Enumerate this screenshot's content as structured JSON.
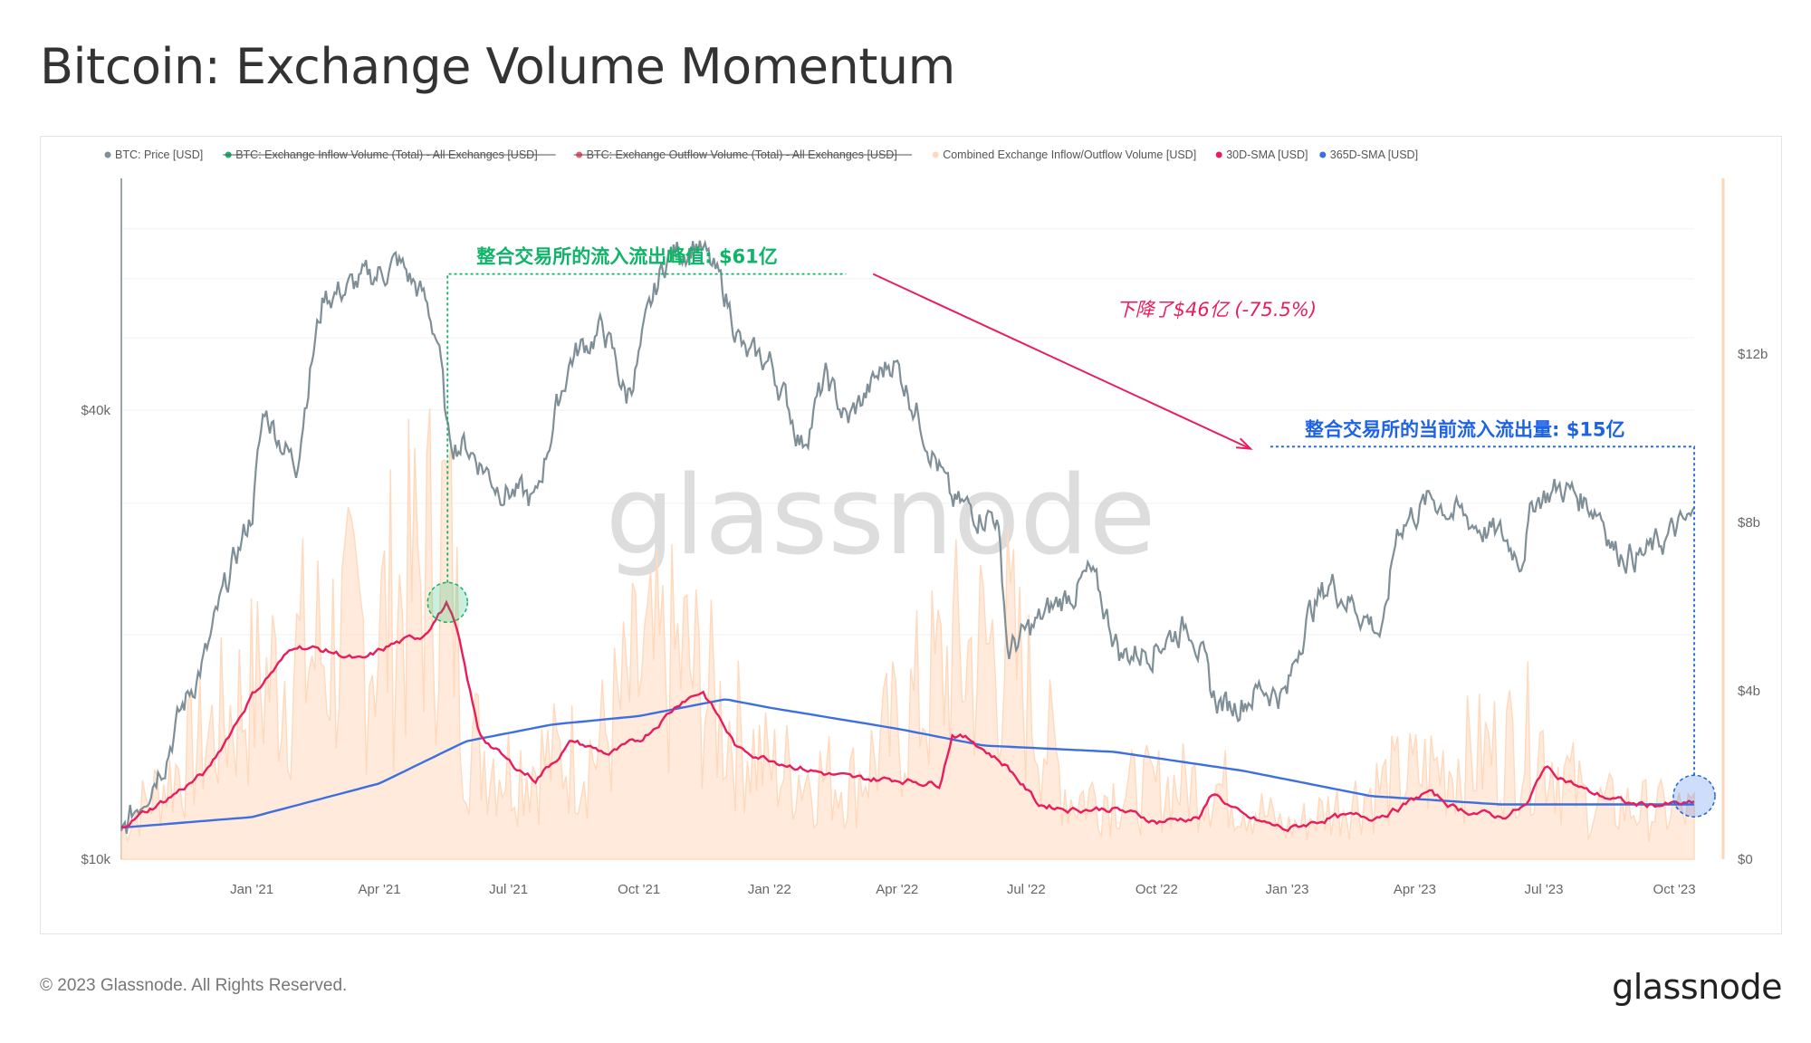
{
  "page": {
    "title": "Bitcoin: Exchange Volume Momentum",
    "copyright": "© 2023 Glassnode. All Rights Reserved.",
    "logo": "glassnode",
    "watermark": "glassnode"
  },
  "colors": {
    "price": "#7f8f98",
    "inflow": "#1db36e",
    "outflow": "#ef5a72",
    "combined": "#ffd9bd",
    "sma30": "#ea1d5c",
    "sma365": "#3c6fe0",
    "peak": "#10b468",
    "drop": "#ea1d5c",
    "current": "#1e63e6"
  },
  "chart_data": {
    "type": "line",
    "title": "Bitcoin: Exchange Volume Momentum",
    "legend": [
      {
        "label": "BTC: Price [USD]",
        "color": "#7f8f98",
        "struck": false
      },
      {
        "label": "BTC: Exchange Inflow Volume (Total) - All Exchanges [USD]",
        "color": "#1db36e",
        "struck": true
      },
      {
        "label": "BTC: Exchange Outflow Volume (Total) - All Exchanges [USD]",
        "color": "#ef5a72",
        "struck": true
      },
      {
        "label": "Combined Exchange Inflow/Outflow Volume [USD]",
        "color": "#ffd9bd",
        "struck": false
      },
      {
        "label": "30D-SMA [USD]",
        "color": "#ea1d5c",
        "struck": false
      },
      {
        "label": "365D-SMA [USD]",
        "color": "#3c6fe0",
        "struck": false
      }
    ],
    "legend_placement": "top",
    "x_ticks": [
      "Jan '21",
      "Apr '21",
      "Jul '21",
      "Oct '21",
      "Jan '22",
      "Apr '22",
      "Jul '22",
      "Oct '22",
      "Jan '23",
      "Apr '23",
      "Jul '23",
      "Oct '23"
    ],
    "x_range": [
      "2020-10-01",
      "2023-10-15"
    ],
    "y_left": {
      "ticks": [
        "$10k",
        "$40k"
      ],
      "tick_values": [
        10000,
        40000
      ],
      "scale": "log",
      "range": [
        10000,
        80000
      ]
    },
    "y_right": {
      "ticks": [
        "$0",
        "$4b",
        "$8b",
        "$12b"
      ],
      "tick_values": [
        0,
        4,
        8,
        12
      ],
      "unit": "billion USD",
      "range": [
        0,
        16
      ]
    },
    "series": [
      {
        "name": "BTC: Price [USD]",
        "axis": "left",
        "x": [
          "2020-10-01",
          "2020-11-01",
          "2020-12-01",
          "2021-01-01",
          "2021-01-10",
          "2021-02-01",
          "2021-02-21",
          "2021-03-13",
          "2021-04-14",
          "2021-05-01",
          "2021-05-12",
          "2021-05-19",
          "2021-06-01",
          "2021-06-22",
          "2021-07-20",
          "2021-08-14",
          "2021-09-06",
          "2021-09-22",
          "2021-10-01",
          "2021-10-20",
          "2021-11-10",
          "2021-12-01",
          "2021-12-15",
          "2022-01-01",
          "2022-01-24",
          "2022-02-10",
          "2022-02-25",
          "2022-03-29",
          "2022-04-15",
          "2022-05-09",
          "2022-05-20",
          "2022-06-10",
          "2022-06-18",
          "2022-07-01",
          "2022-08-15",
          "2022-09-06",
          "2022-09-20",
          "2022-10-01",
          "2022-10-26",
          "2022-11-09",
          "2022-11-21",
          "2022-12-15",
          "2023-01-01",
          "2023-01-14",
          "2023-02-01",
          "2023-03-10",
          "2023-03-20",
          "2023-04-14",
          "2023-05-01",
          "2023-06-01",
          "2023-06-15",
          "2023-06-25",
          "2023-07-14",
          "2023-08-10",
          "2023-08-20",
          "2023-09-10",
          "2023-10-01",
          "2023-10-15"
        ],
        "y": [
          10700,
          13800,
          19000,
          29000,
          40000,
          33500,
          57000,
          58500,
          63000,
          57000,
          50000,
          36500,
          36000,
          32000,
          30000,
          47000,
          51500,
          41500,
          47000,
          64000,
          67500,
          57000,
          47000,
          46500,
          36000,
          44000,
          38500,
          47000,
          40000,
          30000,
          29500,
          29000,
          19000,
          20000,
          24000,
          18800,
          19000,
          19500,
          20800,
          16500,
          16000,
          17000,
          16600,
          21000,
          23500,
          20000,
          28000,
          30500,
          29000,
          27000,
          25500,
          30500,
          31500,
          29400,
          26000,
          25500,
          27500,
          28500
        ]
      },
      {
        "name": "30D-SMA [USD]",
        "axis": "right",
        "x": [
          "2020-10-01",
          "2020-11-01",
          "2020-12-01",
          "2021-01-01",
          "2021-02-01",
          "2021-03-01",
          "2021-03-20",
          "2021-04-10",
          "2021-05-01",
          "2021-05-19",
          "2021-05-25",
          "2021-06-10",
          "2021-07-01",
          "2021-07-20",
          "2021-08-15",
          "2021-09-10",
          "2021-10-01",
          "2021-11-01",
          "2021-11-15",
          "2021-12-10",
          "2022-01-01",
          "2022-02-01",
          "2022-03-01",
          "2022-04-01",
          "2022-05-01",
          "2022-05-10",
          "2022-05-25",
          "2022-06-18",
          "2022-07-10",
          "2022-08-01",
          "2022-09-01",
          "2022-10-01",
          "2022-11-01",
          "2022-11-10",
          "2022-12-01",
          "2023-01-01",
          "2023-02-01",
          "2023-03-01",
          "2023-03-20",
          "2023-04-10",
          "2023-05-01",
          "2023-06-01",
          "2023-06-20",
          "2023-07-01",
          "2023-08-01",
          "2023-09-01",
          "2023-10-15"
        ],
        "y": [
          0.8,
          1.4,
          2.1,
          3.9,
          5.1,
          4.9,
          4.7,
          5.1,
          5.3,
          6.1,
          5.5,
          3.0,
          2.3,
          1.9,
          2.8,
          2.5,
          2.8,
          3.8,
          4.0,
          2.6,
          2.4,
          2.1,
          1.9,
          1.9,
          1.8,
          3.0,
          2.8,
          2.2,
          1.3,
          1.2,
          1.2,
          0.9,
          1.0,
          1.6,
          1.0,
          0.7,
          1.0,
          1.0,
          1.2,
          1.6,
          1.2,
          1.0,
          1.3,
          2.2,
          1.6,
          1.3,
          1.3
        ]
      },
      {
        "name": "365D-SMA [USD]",
        "axis": "right",
        "x": [
          "2020-10-01",
          "2021-01-01",
          "2021-04-01",
          "2021-06-01",
          "2021-08-01",
          "2021-10-01",
          "2021-12-01",
          "2022-01-01",
          "2022-04-01",
          "2022-06-01",
          "2022-09-01",
          "2022-12-01",
          "2023-03-01",
          "2023-06-01",
          "2023-10-15"
        ],
        "y": [
          0.75,
          1.0,
          1.8,
          2.8,
          3.2,
          3.4,
          3.8,
          3.6,
          3.1,
          2.7,
          2.55,
          2.1,
          1.5,
          1.3,
          1.3
        ]
      },
      {
        "name": "Combined Exchange Inflow/Outflow Volume [USD]",
        "axis": "right",
        "type": "area",
        "x": [
          "2020-10-01",
          "2021-01-01",
          "2021-02-01",
          "2021-03-01",
          "2021-04-01",
          "2021-05-19",
          "2021-06-01",
          "2021-07-01",
          "2021-09-01",
          "2021-10-01",
          "2021-11-01",
          "2021-12-01",
          "2022-01-01",
          "2022-03-01",
          "2022-05-10",
          "2022-06-18",
          "2022-08-01",
          "2022-11-10",
          "2023-01-01",
          "2023-03-15",
          "2023-06-25",
          "2023-08-01",
          "2023-10-15"
        ],
        "y": [
          1.0,
          5.5,
          6.5,
          7.0,
          7.5,
          10.5,
          4.0,
          3.0,
          3.5,
          6.0,
          6.5,
          4.5,
          3.0,
          2.5,
          6.5,
          7.0,
          2.0,
          2.5,
          1.0,
          2.5,
          4.0,
          1.8,
          1.5
        ]
      }
    ],
    "annotations": [
      {
        "text": "整合交易所的流入流出峰值: $61亿",
        "value_billion": 6.1,
        "date": "2021-05-19",
        "color": "#10b468"
      },
      {
        "text": "下降了$46亿 (-75.5%)",
        "value_billion": 4.6,
        "color": "#ea1d5c"
      },
      {
        "text": "整合交易所的当前流入流出量: $15亿",
        "value_billion": 1.5,
        "date": "2023-10-15",
        "color": "#1e63e6"
      }
    ],
    "grid": true
  }
}
